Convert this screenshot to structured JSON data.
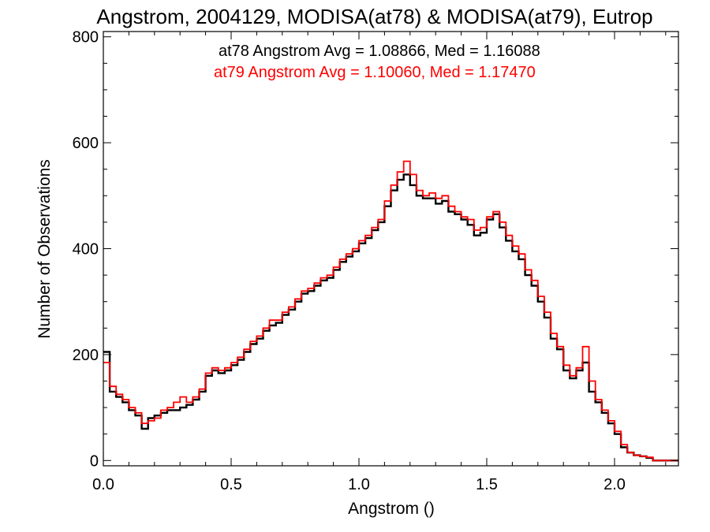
{
  "chart_data": {
    "type": "line",
    "step": true,
    "title": "Angstrom, 2004129, MODISA(at78) & MODISA(at79), Eutrop",
    "xlabel": "Angstrom ()",
    "ylabel": "Number of Observations",
    "xlim": [
      0.0,
      2.25
    ],
    "ylim": [
      -10,
      810
    ],
    "xticks": [
      0.0,
      0.5,
      1.0,
      1.5,
      2.0
    ],
    "xtick_labels": [
      "0.0",
      "0.5",
      "1.0",
      "1.5",
      "2.0"
    ],
    "yticks": [
      0,
      200,
      400,
      600,
      800
    ],
    "ytick_labels": [
      "0",
      "200",
      "400",
      "600",
      "800"
    ],
    "annotations": [
      {
        "text": "at78 Angstrom Avg = 1.08866, Med = 1.16088",
        "color": "#000000"
      },
      {
        "text": "at79 Angstrom Avg = 1.10060, Med = 1.17470",
        "color": "#ff0000"
      }
    ],
    "series": [
      {
        "color": "#000000",
        "x": [
          0.0,
          0.025,
          0.05,
          0.075,
          0.1,
          0.125,
          0.15,
          0.175,
          0.2,
          0.225,
          0.25,
          0.275,
          0.3,
          0.325,
          0.35,
          0.375,
          0.4,
          0.425,
          0.45,
          0.475,
          0.5,
          0.525,
          0.55,
          0.575,
          0.6,
          0.625,
          0.65,
          0.675,
          0.7,
          0.725,
          0.75,
          0.775,
          0.8,
          0.825,
          0.85,
          0.875,
          0.9,
          0.925,
          0.95,
          0.975,
          1.0,
          1.025,
          1.05,
          1.075,
          1.1,
          1.125,
          1.15,
          1.175,
          1.2,
          1.225,
          1.25,
          1.275,
          1.3,
          1.325,
          1.35,
          1.375,
          1.4,
          1.425,
          1.45,
          1.475,
          1.5,
          1.525,
          1.55,
          1.575,
          1.6,
          1.625,
          1.65,
          1.675,
          1.7,
          1.725,
          1.75,
          1.775,
          1.8,
          1.825,
          1.85,
          1.875,
          1.9,
          1.925,
          1.95,
          1.975,
          2.0,
          2.025,
          2.05,
          2.075,
          2.1,
          2.125,
          2.15,
          2.175,
          2.2,
          2.225
        ],
        "y": [
          205,
          130,
          120,
          110,
          95,
          85,
          60,
          80,
          85,
          90,
          95,
          95,
          100,
          105,
          115,
          130,
          160,
          170,
          165,
          170,
          180,
          190,
          205,
          220,
          230,
          245,
          255,
          260,
          275,
          285,
          300,
          315,
          320,
          330,
          340,
          345,
          360,
          375,
          385,
          395,
          410,
          420,
          435,
          450,
          480,
          510,
          530,
          540,
          520,
          500,
          495,
          495,
          485,
          490,
          470,
          465,
          455,
          445,
          425,
          430,
          455,
          465,
          440,
          415,
          395,
          380,
          350,
          330,
          300,
          270,
          230,
          210,
          170,
          155,
          170,
          185,
          130,
          110,
          90,
          70,
          50,
          25,
          15,
          10,
          8,
          5,
          0,
          0,
          0,
          0
        ]
      },
      {
        "color": "#ff0000",
        "x": [
          0.0,
          0.025,
          0.05,
          0.075,
          0.1,
          0.125,
          0.15,
          0.175,
          0.2,
          0.225,
          0.25,
          0.275,
          0.3,
          0.325,
          0.35,
          0.375,
          0.4,
          0.425,
          0.45,
          0.475,
          0.5,
          0.525,
          0.55,
          0.575,
          0.6,
          0.625,
          0.65,
          0.675,
          0.7,
          0.725,
          0.75,
          0.775,
          0.8,
          0.825,
          0.85,
          0.875,
          0.9,
          0.925,
          0.95,
          0.975,
          1.0,
          1.025,
          1.05,
          1.075,
          1.1,
          1.125,
          1.15,
          1.175,
          1.2,
          1.225,
          1.25,
          1.275,
          1.3,
          1.325,
          1.35,
          1.375,
          1.4,
          1.425,
          1.45,
          1.475,
          1.5,
          1.525,
          1.55,
          1.575,
          1.6,
          1.625,
          1.65,
          1.675,
          1.7,
          1.725,
          1.75,
          1.775,
          1.8,
          1.825,
          1.85,
          1.875,
          1.9,
          1.925,
          1.95,
          1.975,
          2.0,
          2.025,
          2.05,
          2.075,
          2.1,
          2.125,
          2.15,
          2.175,
          2.2,
          2.225
        ],
        "y": [
          185,
          140,
          125,
          115,
          100,
          90,
          70,
          75,
          80,
          95,
          100,
          110,
          120,
          110,
          120,
          135,
          165,
          175,
          170,
          175,
          185,
          195,
          210,
          225,
          235,
          250,
          265,
          265,
          280,
          290,
          305,
          320,
          325,
          335,
          345,
          350,
          365,
          380,
          390,
          400,
          415,
          425,
          440,
          455,
          490,
          520,
          545,
          565,
          540,
          510,
          500,
          505,
          495,
          500,
          480,
          470,
          460,
          455,
          435,
          440,
          460,
          470,
          450,
          425,
          405,
          390,
          360,
          340,
          310,
          280,
          240,
          215,
          180,
          160,
          175,
          215,
          150,
          115,
          95,
          75,
          55,
          30,
          15,
          10,
          8,
          6,
          0,
          0,
          0,
          0
        ]
      }
    ]
  }
}
